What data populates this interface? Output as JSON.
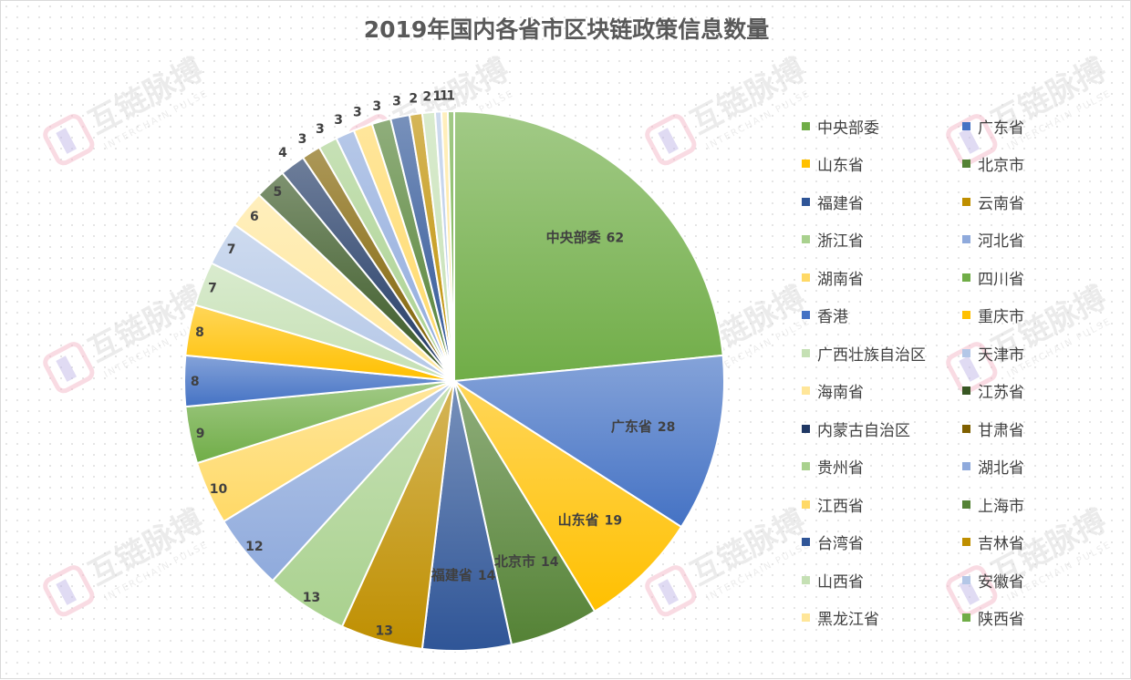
{
  "chart_data": {
    "type": "pie",
    "title": "2019年国内各省市区块链政策信息数量",
    "categories": [
      "中央部委",
      "广东省",
      "山东省",
      "北京市",
      "福建省",
      "云南省",
      "浙江省",
      "河北省",
      "湖南省",
      "四川省",
      "香港",
      "重庆市",
      "广西壮族自治区",
      "天津市",
      "海南省",
      "江苏省",
      "内蒙古自治区",
      "甘肃省",
      "贵州省",
      "湖北省",
      "江西省",
      "上海市",
      "台湾省",
      "吉林省",
      "山西省",
      "安徽省",
      "黑龙江省",
      "陕西省"
    ],
    "values": [
      62,
      28,
      19,
      14,
      14,
      13,
      13,
      12,
      10,
      9,
      8,
      8,
      7,
      7,
      6,
      5,
      4,
      3,
      3,
      3,
      3,
      3,
      3,
      2,
      2,
      1,
      1,
      1
    ],
    "colors": [
      "#70ad47",
      "#4472c4",
      "#ffc000",
      "#548235",
      "#2f5597",
      "#bf8f00",
      "#a9d18e",
      "#8faadc",
      "#ffd966",
      "#70ad47",
      "#4472c4",
      "#ffc000",
      "#c5e0b4",
      "#b4c7e7",
      "#ffe699",
      "#385723",
      "#203864",
      "#7f6000",
      "#a9d18e",
      "#8faadc",
      "#ffd966",
      "#548235",
      "#2f5597",
      "#bf8f00",
      "#c5e0b4",
      "#b4c7e7",
      "#ffe699",
      "#70ad47"
    ],
    "legend_position": "right",
    "data_labels": "value; category name shown for the largest slices"
  },
  "watermark": {
    "logo_text": "互链脉搏",
    "tagline": "INTERCHAIN PULSE"
  }
}
